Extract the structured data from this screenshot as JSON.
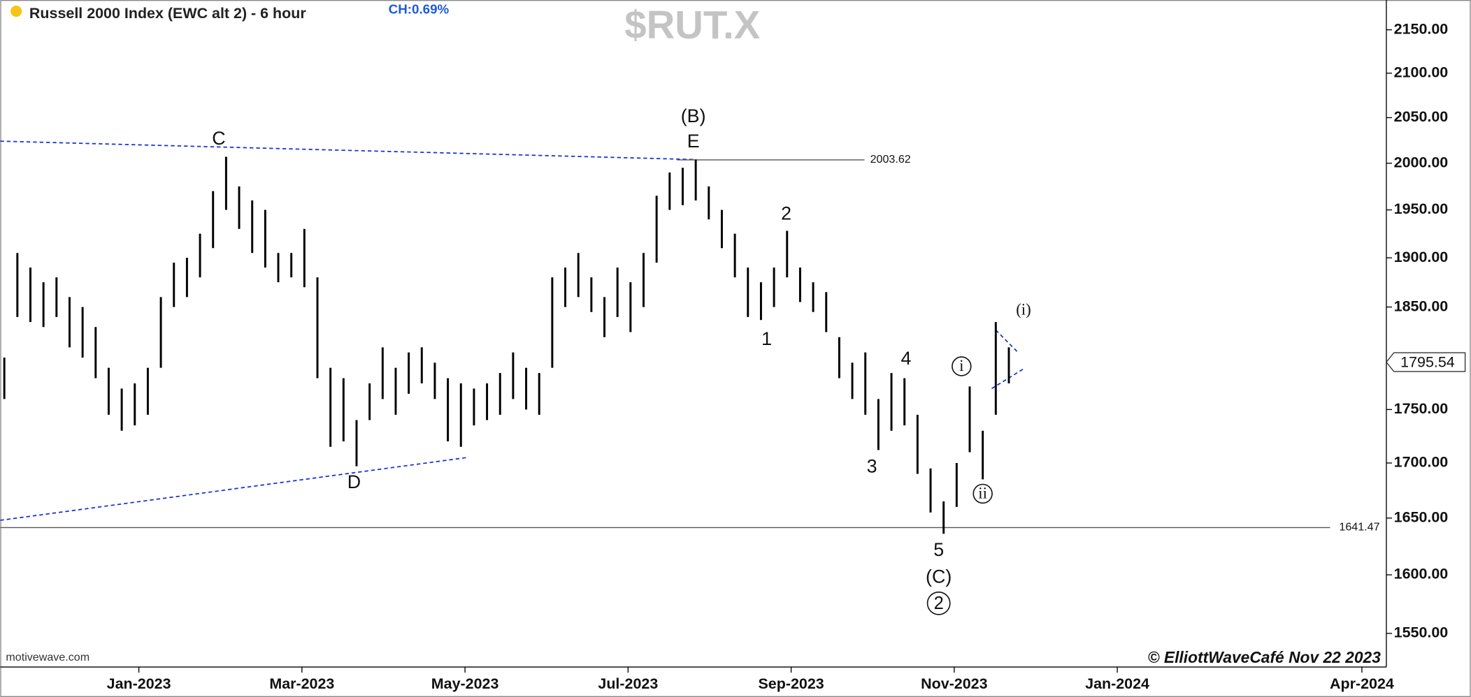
{
  "chart_data": {
    "type": "ohlc",
    "title": "Russell 2000 Index (EWC alt 2) - 6 hour",
    "change": "CH:0.69%",
    "watermark": "$RUT.X",
    "source": "motivewave.com",
    "copyright": "© ElliottWaveCafé Nov 22 2023",
    "color": "#000000",
    "log_y": true,
    "x": [
      -0.65,
      -0.49,
      -0.33,
      -0.17,
      -0.01,
      0.15,
      0.31,
      0.47,
      0.63,
      0.79,
      0.95,
      1.11,
      1.27,
      1.43,
      1.59,
      1.75,
      1.91,
      2.07,
      2.23,
      2.39,
      2.55,
      2.71,
      2.87,
      3.03,
      3.19,
      3.35,
      3.51,
      3.67,
      3.83,
      3.99,
      4.15,
      4.31,
      4.47,
      4.63,
      4.79,
      4.95,
      5.11,
      5.27,
      5.43,
      5.59,
      5.75,
      5.91,
      6.07,
      6.23,
      6.39,
      6.55,
      6.71,
      6.87,
      7.03,
      7.19,
      7.35,
      7.51,
      7.67,
      7.83,
      7.99,
      8.15,
      8.31,
      8.47,
      8.63,
      8.79,
      8.95,
      9.11,
      9.27,
      9.43,
      9.59,
      9.75,
      9.91,
      10.07,
      10.23,
      10.39,
      10.55,
      10.71,
      10.87,
      11.03,
      11.19,
      11.35,
      11.51,
      11.67
    ],
    "high": [
      1800,
      1905,
      1890,
      1875,
      1880,
      1860,
      1850,
      1830,
      1790,
      1770,
      1775,
      1790,
      1860,
      1895,
      1900,
      1925,
      1970,
      2007,
      1975,
      1960,
      1950,
      1905,
      1905,
      1930,
      1880,
      1790,
      1780,
      1740,
      1775,
      1810,
      1790,
      1805,
      1810,
      1795,
      1780,
      1775,
      1770,
      1775,
      1785,
      1805,
      1790,
      1785,
      1880,
      1890,
      1905,
      1880,
      1860,
      1890,
      1875,
      1905,
      1965,
      1990,
      1995,
      2004,
      1975,
      1950,
      1925,
      1890,
      1875,
      1890,
      1928,
      1890,
      1875,
      1865,
      1820,
      1795,
      1805,
      1760,
      1785,
      1780,
      1745,
      1695,
      1665,
      1700,
      1772,
      1730,
      1835,
      1810
    ],
    "low": [
      1760,
      1840,
      1835,
      1830,
      1840,
      1810,
      1800,
      1780,
      1745,
      1730,
      1735,
      1745,
      1790,
      1850,
      1860,
      1880,
      1910,
      1950,
      1930,
      1905,
      1890,
      1875,
      1880,
      1870,
      1780,
      1715,
      1720,
      1697,
      1740,
      1760,
      1745,
      1765,
      1775,
      1760,
      1720,
      1715,
      1735,
      1740,
      1745,
      1760,
      1750,
      1745,
      1790,
      1850,
      1860,
      1845,
      1820,
      1840,
      1825,
      1850,
      1895,
      1950,
      1955,
      1960,
      1940,
      1910,
      1880,
      1840,
      1837,
      1850,
      1880,
      1855,
      1845,
      1825,
      1780,
      1760,
      1745,
      1712,
      1730,
      1735,
      1690,
      1655,
      1636,
      1660,
      1710,
      1685,
      1745,
      1775
    ],
    "xlim": [
      -0.7,
      16.3
    ],
    "ylim": [
      1522,
      2185
    ],
    "xticks": [
      {
        "value": 1,
        "label": "Jan-2023"
      },
      {
        "value": 3,
        "label": "Mar-2023"
      },
      {
        "value": 5,
        "label": "May-2023"
      },
      {
        "value": 7,
        "label": "Jul-2023"
      },
      {
        "value": 9,
        "label": "Sep-2023"
      },
      {
        "value": 11,
        "label": "Nov-2023"
      },
      {
        "value": 13,
        "label": "Jan-2024"
      },
      {
        "value": 16,
        "label": "Apr-2024"
      }
    ],
    "yticks": [
      {
        "value": 1550,
        "label": "1550.00"
      },
      {
        "value": 1600,
        "label": "1600.00"
      },
      {
        "value": 1650,
        "label": "1650.00"
      },
      {
        "value": 1700,
        "label": "1700.00"
      },
      {
        "value": 1750,
        "label": "1750.00"
      },
      {
        "value": 1850,
        "label": "1850.00"
      },
      {
        "value": 1900,
        "label": "1900.00"
      },
      {
        "value": 1950,
        "label": "1950.00"
      },
      {
        "value": 2000,
        "label": "2000.00"
      },
      {
        "value": 2050,
        "label": "2050.00"
      },
      {
        "value": 2100,
        "label": "2100.00"
      },
      {
        "value": 2150,
        "label": "2150.00"
      }
    ],
    "levels": [
      2003.62,
      1641.47
    ],
    "last_price": 1795.54,
    "annotations": [
      "C",
      "(B)",
      "E",
      "D",
      "2",
      "1",
      "4",
      "3",
      "5",
      "(C)",
      "2",
      "(i)",
      "i",
      "ii"
    ]
  }
}
